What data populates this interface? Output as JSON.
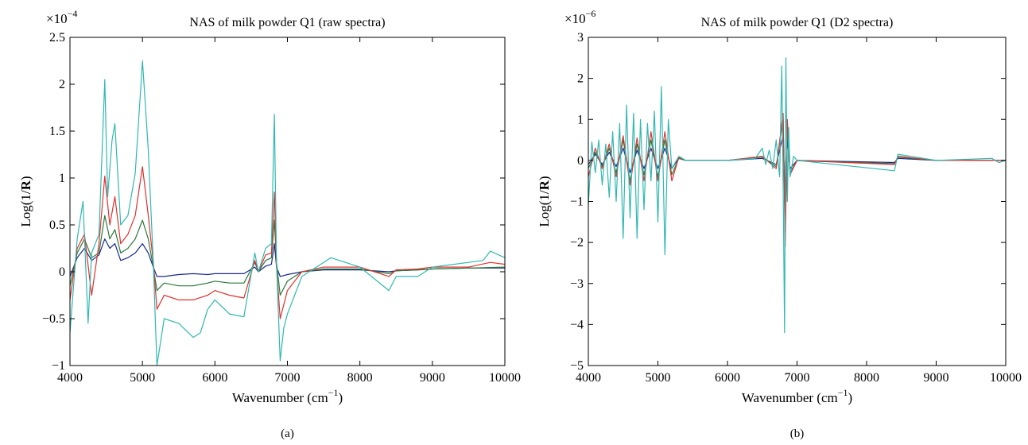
{
  "chart_data": [
    {
      "type": "line",
      "panel_label": "(a)",
      "title": "NAS of milk powder Q1 (raw spectra)",
      "xlabel": "Wavenumber (cm",
      "xlabel_sup": "−1",
      "xlabel_end": ")",
      "ylabel_pre": "Log(1/",
      "ylabel_bold": "R",
      "ylabel_post": ")",
      "multiplier_base": "×10",
      "multiplier_exp": "−4",
      "xlim": [
        4000,
        10000
      ],
      "ylim": [
        -1,
        2.5
      ],
      "xticks": [
        "4000",
        "5000",
        "6000",
        "7000",
        "8000",
        "9000",
        "10000"
      ],
      "yticks": [
        "−1",
        "−0.5",
        "0",
        "0.5",
        "1",
        "1.5",
        "2",
        "2.5"
      ],
      "grid": false,
      "series": [
        {
          "color": "#1a2a8c",
          "x": [
            4000,
            4100,
            4200,
            4300,
            4400,
            4480,
            4550,
            4620,
            4700,
            4800,
            4900,
            5000,
            5080,
            5150,
            5200,
            5300,
            5500,
            5700,
            5900,
            6000,
            6200,
            6400,
            6550,
            6600,
            6700,
            6780,
            6820,
            6850,
            6900,
            7000,
            7200,
            7500,
            8000,
            8400,
            8500,
            8800,
            9000,
            9500,
            10000
          ],
          "y": [
            -0.05,
            0.15,
            0.25,
            0.12,
            0.18,
            0.35,
            0.25,
            0.3,
            0.12,
            0.15,
            0.2,
            0.3,
            0.2,
            0.05,
            -0.05,
            -0.05,
            -0.03,
            -0.02,
            -0.03,
            -0.02,
            -0.02,
            -0.02,
            0.05,
            0,
            0.06,
            0.08,
            0.3,
            0.05,
            -0.05,
            -0.03,
            0,
            0.02,
            0.02,
            0.0,
            0.01,
            0.02,
            0.03,
            0.04,
            0.04
          ]
        },
        {
          "color": "#2a7a3a",
          "x": [
            4000,
            4100,
            4200,
            4300,
            4400,
            4480,
            4550,
            4620,
            4700,
            4800,
            4900,
            5000,
            5080,
            5150,
            5200,
            5300,
            5500,
            5700,
            5900,
            6000,
            6200,
            6400,
            6550,
            6600,
            6700,
            6780,
            6820,
            6850,
            6900,
            7000,
            7200,
            7500,
            8000,
            8400,
            8500,
            8800,
            9000,
            9500,
            10000
          ],
          "y": [
            -0.15,
            0.2,
            0.35,
            0.15,
            0.2,
            0.6,
            0.35,
            0.45,
            0.2,
            0.25,
            0.35,
            0.55,
            0.35,
            0.05,
            -0.2,
            -0.12,
            -0.15,
            -0.15,
            -0.12,
            -0.1,
            -0.12,
            -0.12,
            0.1,
            0,
            0.12,
            0.15,
            0.55,
            0.1,
            -0.25,
            -0.1,
            0,
            0.03,
            0.03,
            -0.02,
            0.01,
            0.02,
            0.03,
            0.04,
            0.05
          ]
        },
        {
          "color": "#e03030",
          "x": [
            4000,
            4100,
            4200,
            4300,
            4400,
            4480,
            4550,
            4620,
            4700,
            4800,
            4900,
            5000,
            5080,
            5150,
            5200,
            5300,
            5500,
            5700,
            5900,
            6000,
            6200,
            6400,
            6550,
            6600,
            6700,
            6780,
            6820,
            6850,
            6900,
            7000,
            7200,
            7500,
            8000,
            8400,
            8500,
            8800,
            9000,
            9500,
            9800,
            10000
          ],
          "y": [
            -0.3,
            0.25,
            0.4,
            -0.25,
            0.3,
            1.02,
            0.5,
            0.8,
            0.3,
            0.4,
            0.6,
            1.12,
            0.6,
            0.1,
            -0.4,
            -0.25,
            -0.3,
            -0.3,
            -0.25,
            -0.2,
            -0.25,
            -0.28,
            0.12,
            0,
            0.18,
            0.2,
            0.85,
            0.05,
            -0.5,
            -0.2,
            0,
            0.05,
            0.05,
            -0.05,
            0.02,
            0.03,
            0.05,
            0.05,
            0.1,
            0.08
          ]
        },
        {
          "color": "#30b8b0",
          "x": [
            4000,
            4100,
            4180,
            4250,
            4300,
            4400,
            4480,
            4520,
            4580,
            4620,
            4700,
            4800,
            4900,
            5000,
            5080,
            5150,
            5200,
            5300,
            5500,
            5700,
            5800,
            5900,
            6000,
            6200,
            6400,
            6550,
            6600,
            6700,
            6780,
            6820,
            6850,
            6900,
            6950,
            7000,
            7200,
            7500,
            7600,
            8000,
            8400,
            8500,
            8800,
            9000,
            9500,
            9700,
            9800,
            10000
          ],
          "y": [
            -0.65,
            0.35,
            0.75,
            -0.55,
            0.2,
            0.4,
            2.05,
            0.8,
            1.4,
            1.58,
            0.5,
            0.6,
            1.05,
            2.25,
            1.3,
            0.1,
            -1.0,
            -0.5,
            -0.55,
            -0.7,
            -0.65,
            -0.4,
            -0.3,
            -0.45,
            -0.48,
            0.2,
            0,
            0.25,
            0.3,
            1.68,
            0.1,
            -0.95,
            -0.6,
            -0.45,
            -0.05,
            0.1,
            0.15,
            0.05,
            -0.2,
            -0.05,
            -0.05,
            0.05,
            0.1,
            0.12,
            0.22,
            0.15
          ]
        }
      ]
    },
    {
      "type": "line",
      "panel_label": "(b)",
      "title": "NAS of milk powder Q1 (D2 spectra)",
      "xlabel": "Wavenumber (cm",
      "xlabel_sup": "−1",
      "xlabel_end": ")",
      "ylabel_pre": "Log(1/",
      "ylabel_bold": "R",
      "ylabel_post": ")",
      "multiplier_base": "×10",
      "multiplier_exp": "−6",
      "xlim": [
        4000,
        10000
      ],
      "ylim": [
        -5,
        3
      ],
      "xticks": [
        "4000",
        "5000",
        "6000",
        "7000",
        "8000",
        "9000",
        "10000"
      ],
      "yticks": [
        "−5",
        "−4",
        "−3",
        "−2",
        "−1",
        "0",
        "1",
        "2",
        "3"
      ],
      "grid": false,
      "series": [
        {
          "color": "#1a2a8c",
          "x": [
            4000,
            4100,
            4200,
            4300,
            4400,
            4500,
            4600,
            4700,
            4800,
            4900,
            5000,
            5100,
            5200,
            5300,
            5400,
            6000,
            6500,
            6700,
            6800,
            6830,
            6860,
            6900,
            7000,
            8400,
            8450,
            9000,
            10000
          ],
          "y": [
            -0.1,
            0.15,
            -0.1,
            0.2,
            -0.15,
            0.3,
            -0.3,
            0.25,
            -0.2,
            0.3,
            -0.2,
            0.3,
            -0.2,
            0.05,
            0,
            0,
            0.05,
            -0.1,
            0.6,
            -1.0,
            0.5,
            -0.2,
            0,
            -0.05,
            0.05,
            0,
            0
          ]
        },
        {
          "color": "#2a7a3a",
          "x": [
            4000,
            4100,
            4200,
            4300,
            4400,
            4500,
            4600,
            4700,
            4800,
            4900,
            5000,
            5100,
            5200,
            5300,
            5400,
            6000,
            6500,
            6700,
            6800,
            6830,
            6860,
            6900,
            7000,
            8400,
            8450,
            9000,
            10000
          ],
          "y": [
            -0.2,
            0.2,
            -0.15,
            0.3,
            -0.3,
            0.5,
            -0.5,
            0.4,
            -0.35,
            0.5,
            -0.4,
            0.5,
            -0.35,
            0.05,
            0,
            0,
            0.08,
            -0.15,
            1.0,
            -1.8,
            0.8,
            -0.3,
            0,
            -0.08,
            0.08,
            0,
            0
          ]
        },
        {
          "color": "#e03030",
          "x": [
            4000,
            4100,
            4200,
            4300,
            4400,
            4500,
            4600,
            4700,
            4800,
            4900,
            5000,
            5100,
            5200,
            5300,
            5400,
            6000,
            6500,
            6700,
            6800,
            6830,
            6860,
            6900,
            7000,
            8400,
            8450,
            9000,
            10000
          ],
          "y": [
            -0.4,
            0.3,
            -0.2,
            0.4,
            -0.4,
            0.6,
            -0.6,
            0.55,
            -0.5,
            0.7,
            -0.5,
            0.7,
            -0.5,
            0.08,
            0,
            0,
            0.1,
            -0.2,
            1.15,
            -2.1,
            1.0,
            -0.35,
            0,
            -0.1,
            0.1,
            0,
            0
          ]
        },
        {
          "color": "#30b8b0",
          "x": [
            4000,
            4050,
            4100,
            4150,
            4200,
            4250,
            4300,
            4350,
            4400,
            4450,
            4500,
            4550,
            4600,
            4650,
            4700,
            4750,
            4800,
            4850,
            4900,
            4950,
            5000,
            5050,
            5100,
            5150,
            5200,
            5300,
            5400,
            6000,
            6400,
            6500,
            6550,
            6600,
            6650,
            6700,
            6750,
            6780,
            6800,
            6820,
            6840,
            6860,
            6880,
            6900,
            6950,
            7000,
            8400,
            8450,
            9000,
            9800,
            9900,
            10000
          ],
          "y": [
            -1.1,
            0.45,
            -0.3,
            0.5,
            -0.6,
            0.4,
            -0.9,
            0.7,
            -1.0,
            0.9,
            -1.9,
            1.35,
            -1.4,
            1.15,
            -1.9,
            1.0,
            -1.2,
            0.9,
            -0.5,
            1.2,
            -1.5,
            1.8,
            -2.3,
            1.0,
            -0.2,
            0.1,
            0,
            0,
            0.05,
            0.3,
            -0.1,
            0.25,
            -0.2,
            0.5,
            -0.4,
            2.3,
            -0.5,
            -4.2,
            2.5,
            -1.0,
            0.8,
            -0.4,
            0.1,
            0,
            -0.25,
            0.15,
            0,
            0.05,
            -0.05,
            0
          ]
        }
      ]
    }
  ]
}
